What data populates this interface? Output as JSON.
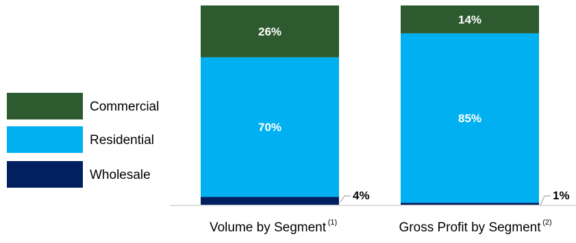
{
  "chart_data": {
    "type": "bar",
    "stacked": true,
    "normalized": true,
    "categories": [
      {
        "label": "Volume by Segment",
        "note": "(1)"
      },
      {
        "label": "Gross Profit by Segment",
        "note": "(2)"
      }
    ],
    "series": [
      {
        "name": "Wholesale",
        "color": "#002060",
        "values": [
          4,
          1
        ],
        "labels": [
          "4%",
          "1%"
        ]
      },
      {
        "name": "Residential",
        "color": "#00B0F0",
        "values": [
          70,
          85
        ],
        "labels": [
          "70%",
          "85%"
        ]
      },
      {
        "name": "Commercial",
        "color": "#2E5A30",
        "values": [
          26,
          14
        ],
        "labels": [
          "26%",
          "14%"
        ]
      }
    ],
    "legend_order": [
      "Commercial",
      "Residential",
      "Wholesale"
    ],
    "legend_position": "left",
    "ylim": [
      0,
      100
    ],
    "grid": false,
    "title": "",
    "xlabel": "",
    "ylabel": ""
  }
}
